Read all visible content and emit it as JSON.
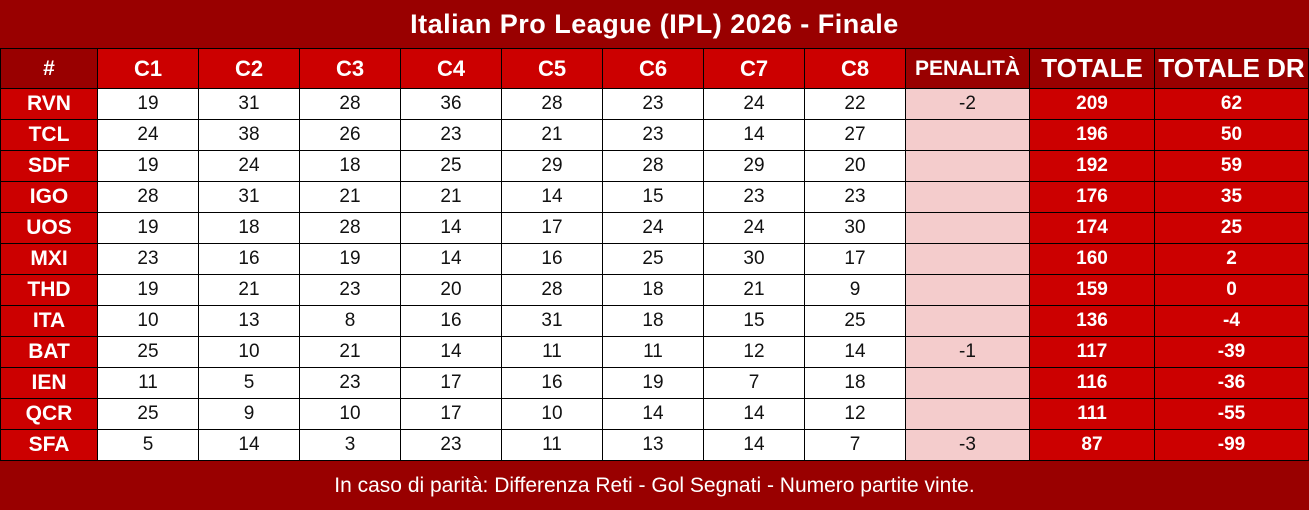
{
  "title": "Italian Pro League (IPL) 2026 - Finale",
  "footer_note": "In caso di parità: Differenza Reti - Gol Segnati - Numero partite vinte.",
  "colors": {
    "dark_red": "#990000",
    "bright_red": "#cc0000",
    "pink": "#f4cccc",
    "border": "#000000",
    "text_dark": "#111111",
    "text_light": "#ffffff"
  },
  "table": {
    "headers": [
      "#",
      "C1",
      "C2",
      "C3",
      "C4",
      "C5",
      "C6",
      "C7",
      "C8",
      "PENALITÀ",
      "TOTALE",
      "TOTALE DR"
    ],
    "rows": [
      {
        "team": "RVN",
        "scores": [
          19,
          31,
          28,
          36,
          28,
          23,
          24,
          22
        ],
        "penalty": "-2",
        "total": "209",
        "total_dr": "62"
      },
      {
        "team": "TCL",
        "scores": [
          24,
          38,
          26,
          23,
          21,
          23,
          14,
          27
        ],
        "penalty": "",
        "total": "196",
        "total_dr": "50"
      },
      {
        "team": "SDF",
        "scores": [
          19,
          24,
          18,
          25,
          29,
          28,
          29,
          20
        ],
        "penalty": "",
        "total": "192",
        "total_dr": "59"
      },
      {
        "team": "IGO",
        "scores": [
          28,
          31,
          21,
          21,
          14,
          15,
          23,
          23
        ],
        "penalty": "",
        "total": "176",
        "total_dr": "35"
      },
      {
        "team": "UOS",
        "scores": [
          19,
          18,
          28,
          14,
          17,
          24,
          24,
          30
        ],
        "penalty": "",
        "total": "174",
        "total_dr": "25"
      },
      {
        "team": "MXI",
        "scores": [
          23,
          16,
          19,
          14,
          16,
          25,
          30,
          17
        ],
        "penalty": "",
        "total": "160",
        "total_dr": "2"
      },
      {
        "team": "THD",
        "scores": [
          19,
          21,
          23,
          20,
          28,
          18,
          21,
          9
        ],
        "penalty": "",
        "total": "159",
        "total_dr": "0"
      },
      {
        "team": "ITA",
        "scores": [
          10,
          13,
          8,
          16,
          31,
          18,
          15,
          25
        ],
        "penalty": "",
        "total": "136",
        "total_dr": "-4"
      },
      {
        "team": "BAT",
        "scores": [
          25,
          10,
          21,
          14,
          11,
          11,
          12,
          14
        ],
        "penalty": "-1",
        "total": "117",
        "total_dr": "-39"
      },
      {
        "team": "IEN",
        "scores": [
          11,
          5,
          23,
          17,
          16,
          19,
          7,
          18
        ],
        "penalty": "",
        "total": "116",
        "total_dr": "-36"
      },
      {
        "team": "QCR",
        "scores": [
          25,
          9,
          10,
          17,
          10,
          14,
          14,
          12
        ],
        "penalty": "",
        "total": "111",
        "total_dr": "-55"
      },
      {
        "team": "SFA",
        "scores": [
          5,
          14,
          3,
          23,
          11,
          13,
          14,
          7
        ],
        "penalty": "-3",
        "total": "87",
        "total_dr": "-99"
      }
    ]
  }
}
